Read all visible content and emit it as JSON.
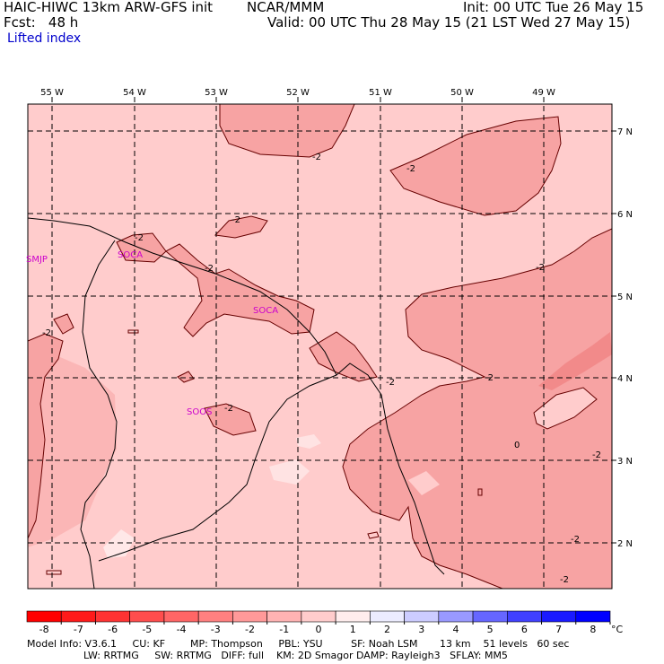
{
  "header": {
    "model": "HAIC-HIWC 13km ARW-GFS init",
    "center": "NCAR/MMM",
    "init": "Init: 00 UTC Tue 26 May 15",
    "fcst": "Fcst:   48 h",
    "valid": "Valid: 00 UTC Thu 28 May 15 (21 LST Wed 27 May 15)",
    "field": "Lifted index"
  },
  "axes": {
    "lon_labels": [
      "55 W",
      "54 W",
      "53 W",
      "52 W",
      "51 W",
      "50 W",
      "49 W"
    ],
    "lat_labels": [
      "7 N",
      "6 N",
      "5 N",
      "4 N",
      "3 N",
      "2 N"
    ]
  },
  "stations": [
    "SMJP",
    "SOCA",
    "SOCA",
    "SOOS"
  ],
  "contour_labels": [
    "-2",
    "-2",
    "-2",
    "-2",
    "-2",
    "-2",
    "-2",
    "-2",
    "-2",
    "-2",
    "-2",
    "-2",
    "-2",
    "0"
  ],
  "colorbar": {
    "ticks": [
      "-8",
      "-7",
      "-6",
      "-5",
      "-4",
      "-3",
      "-2",
      "-1",
      "0",
      "1",
      "2",
      "3",
      "4",
      "5",
      "6",
      "7",
      "8"
    ],
    "unit": "°C",
    "colors": [
      "#ff0000",
      "#ff1a1a",
      "#ff3333",
      "#ff4d4d",
      "#ff6666",
      "#ff8080",
      "#ff9999",
      "#ffb3b3",
      "#ffcccc",
      "#ffeded",
      "#ececff",
      "#ccccff",
      "#9999ff",
      "#6666ff",
      "#4040ff",
      "#1a1aff",
      "#0000ff"
    ]
  },
  "footer": {
    "line1": "Model Info: V3.6.1     CU: KF        MP: Thompson     PBL: YSU         SF: Noah LSM       13 km    51 levels   60 sec",
    "line2": "                  LW: RRTMG     SW: RRTMG   DIFF: full    KM: 2D Smagor DAMP: Rayleigh3   SFLAY: MM5"
  }
}
